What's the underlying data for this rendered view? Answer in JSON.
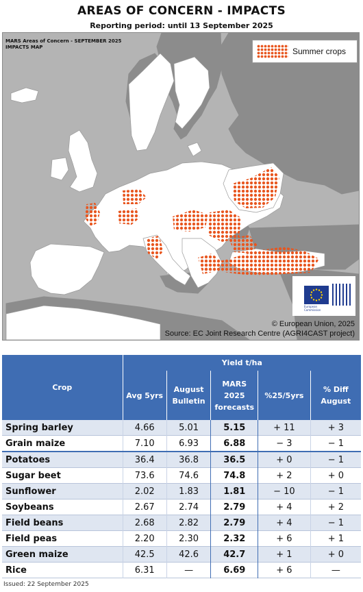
{
  "header": {
    "title": "AREAS OF CONCERN - IMPACTS",
    "subtitle": "Reporting period: until 13 September 2025"
  },
  "map": {
    "title_line1": "MARS Areas of Concern - SEPTEMBER 2025",
    "title_line2": "IMPACTS MAP",
    "legend_label": "Summer crops",
    "copyright": "© European Union, 2025",
    "source": "Source: EC Joint Research Centre (AGRI4CAST project)",
    "logo_text_1": "European",
    "logo_text_2": "Commission",
    "colors": {
      "sea": "#b4b4b4",
      "land_mars": "#ffffff",
      "land_other": "#8c8c8c",
      "concern": "#e8561f"
    }
  },
  "table": {
    "group_header": "Yield t/ha",
    "columns": {
      "crop": "Crop",
      "avg": "Avg 5yrs",
      "aug_1": "August",
      "aug_2": "Bulletin",
      "mars_1": "MARS",
      "mars_2": "2025",
      "mars_3": "forecasts",
      "pct": "%25/5yrs",
      "diff_1": "% Diff",
      "diff_2": "August"
    },
    "rows": [
      {
        "crop": "Spring barley",
        "avg": "4.66",
        "aug": "5.01",
        "mars": "5.15",
        "pct": "+ 11",
        "diff": "+ 3"
      },
      {
        "crop": "Grain maize",
        "avg": "7.10",
        "aug": "6.93",
        "mars": "6.88",
        "pct": "− 3",
        "diff": "− 1"
      },
      {
        "crop": "Potatoes",
        "avg": "36.4",
        "aug": "36.8",
        "mars": "36.5",
        "pct": "+ 0",
        "diff": "− 1"
      },
      {
        "crop": "Sugar beet",
        "avg": "73.6",
        "aug": "74.6",
        "mars": "74.8",
        "pct": "+ 2",
        "diff": "+ 0"
      },
      {
        "crop": "Sunflower",
        "avg": "2.02",
        "aug": "1.83",
        "mars": "1.81",
        "pct": "− 10",
        "diff": "− 1"
      },
      {
        "crop": "Soybeans",
        "avg": "2.67",
        "aug": "2.74",
        "mars": "2.79",
        "pct": "+ 4",
        "diff": "+ 2"
      },
      {
        "crop": "Field beans",
        "avg": "2.68",
        "aug": "2.82",
        "mars": "2.79",
        "pct": "+ 4",
        "diff": "− 1"
      },
      {
        "crop": "Field peas",
        "avg": "2.20",
        "aug": "2.30",
        "mars": "2.32",
        "pct": "+ 6",
        "diff": "+ 1"
      },
      {
        "crop": "Green maize",
        "avg": "42.5",
        "aug": "42.6",
        "mars": "42.7",
        "pct": "+ 1",
        "diff": "+ 0"
      },
      {
        "crop": "Rice",
        "avg": "6.31",
        "aug": "—",
        "mars": "6.69",
        "pct": "+ 6",
        "diff": "—"
      }
    ]
  },
  "footer": {
    "issued": "Issued: 22 September 2025"
  }
}
